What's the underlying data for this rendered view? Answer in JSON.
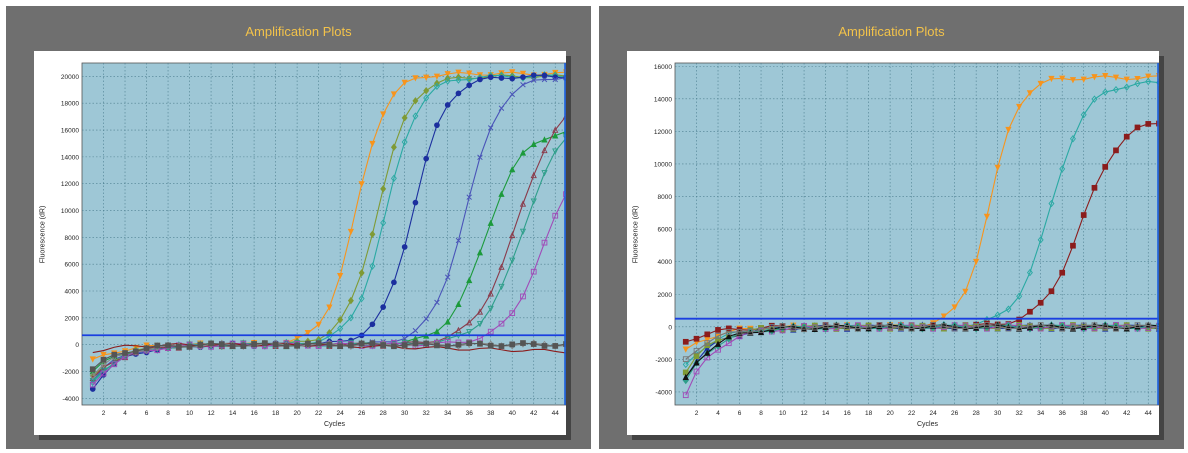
{
  "chart_data": [
    {
      "type": "line",
      "title": "Amplification Plots",
      "xlabel": "Cycles",
      "ylabel": "Fluorescence (dR)",
      "xlim": [
        0,
        45
      ],
      "ylim": [
        -4500,
        21000
      ],
      "xticks": [
        2,
        4,
        6,
        8,
        10,
        12,
        14,
        16,
        18,
        20,
        22,
        24,
        26,
        28,
        30,
        32,
        34,
        36,
        38,
        40,
        42,
        44
      ],
      "yticks": [
        -4000,
        -2000,
        0,
        2000,
        4000,
        6000,
        8000,
        10000,
        12000,
        14000,
        16000,
        18000,
        20000
      ],
      "threshold": 700,
      "background": "#9ec7d6",
      "series": [
        {
          "color": "#f7941d",
          "marker": "triangle-down",
          "filled": true,
          "start": -1200,
          "ct": 25.5,
          "plateau": 20200,
          "slope": 1.4
        },
        {
          "color": "#7f9a35",
          "marker": "diamond",
          "filled": true,
          "start": -2400,
          "ct": 27.5,
          "plateau": 20000,
          "slope": 1.5
        },
        {
          "color": "#2aa9a3",
          "marker": "diamond",
          "filled": false,
          "start": -2800,
          "ct": 28.3,
          "plateau": 20000,
          "slope": 1.5
        },
        {
          "color": "#1c2f9e",
          "marker": "circle",
          "filled": true,
          "start": -3200,
          "ct": 30.8,
          "plateau": 20000,
          "slope": 1.5
        },
        {
          "color": "#4a54b8",
          "marker": "x",
          "filled": false,
          "start": -2600,
          "ct": 35.7,
          "plateau": 20000,
          "slope": 1.6
        },
        {
          "color": "#1c9a3c",
          "marker": "triangle",
          "filled": true,
          "start": -2000,
          "ct": 37.5,
          "plateau": 16000,
          "slope": 1.7
        },
        {
          "color": "#8a3a4a",
          "marker": "triangle",
          "filled": false,
          "start": -2600,
          "ct": 40.5,
          "plateau": 18500,
          "slope": 1.9
        },
        {
          "color": "#2e9e8a",
          "marker": "triangle-down",
          "filled": false,
          "start": -2800,
          "ct": 41.0,
          "plateau": 17000,
          "slope": 1.8
        },
        {
          "color": "#a04ab8",
          "marker": "square",
          "filled": false,
          "start": -3000,
          "ct": 43.0,
          "plateau": 15000,
          "slope": 1.8
        },
        {
          "color": "#8b1c1c",
          "marker": "none",
          "filled": false,
          "start": -500,
          "ct": 99,
          "plateau": 0,
          "slope": 1.5,
          "drift": -500
        },
        {
          "color": "#888888",
          "marker": "diamond",
          "filled": false,
          "start": -2200,
          "ct": 99,
          "plateau": 0,
          "slope": 1.5
        },
        {
          "color": "#555555",
          "marker": "square",
          "filled": true,
          "start": -1800,
          "ct": 99,
          "plateau": 0,
          "slope": 1.5
        }
      ]
    },
    {
      "type": "line",
      "title": "Amplification Plots",
      "xlabel": "Cycles",
      "ylabel": "Fluorescence (dR)",
      "xlim": [
        0,
        45
      ],
      "ylim": [
        -4800,
        16200
      ],
      "xticks": [
        2,
        4,
        6,
        8,
        10,
        12,
        14,
        16,
        18,
        20,
        22,
        24,
        26,
        28,
        30,
        32,
        34,
        36,
        38,
        40,
        42,
        44
      ],
      "yticks": [
        -4000,
        -2000,
        0,
        2000,
        4000,
        6000,
        8000,
        10000,
        12000,
        14000,
        16000
      ],
      "threshold": 500,
      "background": "#9ec7d6",
      "series": [
        {
          "color": "#f7941d",
          "marker": "triangle-down",
          "filled": true,
          "start": -1500,
          "ct": 29.3,
          "plateau": 15300,
          "slope": 1.3
        },
        {
          "color": "#2aa9a3",
          "marker": "diamond",
          "filled": false,
          "start": -2400,
          "ct": 35.0,
          "plateau": 15000,
          "slope": 1.6
        },
        {
          "color": "#8b1c1c",
          "marker": "square",
          "filled": true,
          "start": -900,
          "ct": 37.8,
          "plateau": 12800,
          "slope": 1.8
        },
        {
          "color": "#1c2f9e",
          "marker": "triangle",
          "filled": true,
          "start": -3000,
          "ct": 99,
          "plateau": 0,
          "slope": 1.5
        },
        {
          "color": "#7f9a35",
          "marker": "square",
          "filled": true,
          "start": -2700,
          "ct": 99,
          "plateau": 0,
          "slope": 1.5
        },
        {
          "color": "#a04ab8",
          "marker": "square",
          "filled": false,
          "start": -4200,
          "ct": 99,
          "plateau": 0,
          "slope": 1.5
        },
        {
          "color": "#2e9e8a",
          "marker": "diamond",
          "filled": true,
          "start": -3400,
          "ct": 99,
          "plateau": 0,
          "slope": 1.5
        },
        {
          "color": "#111111",
          "marker": "triangle",
          "filled": true,
          "start": -3200,
          "ct": 99,
          "plateau": 0,
          "slope": 1.5
        },
        {
          "color": "#777777",
          "marker": "square",
          "filled": false,
          "start": -2000,
          "ct": 99,
          "plateau": 0,
          "slope": 1.5
        }
      ]
    }
  ]
}
